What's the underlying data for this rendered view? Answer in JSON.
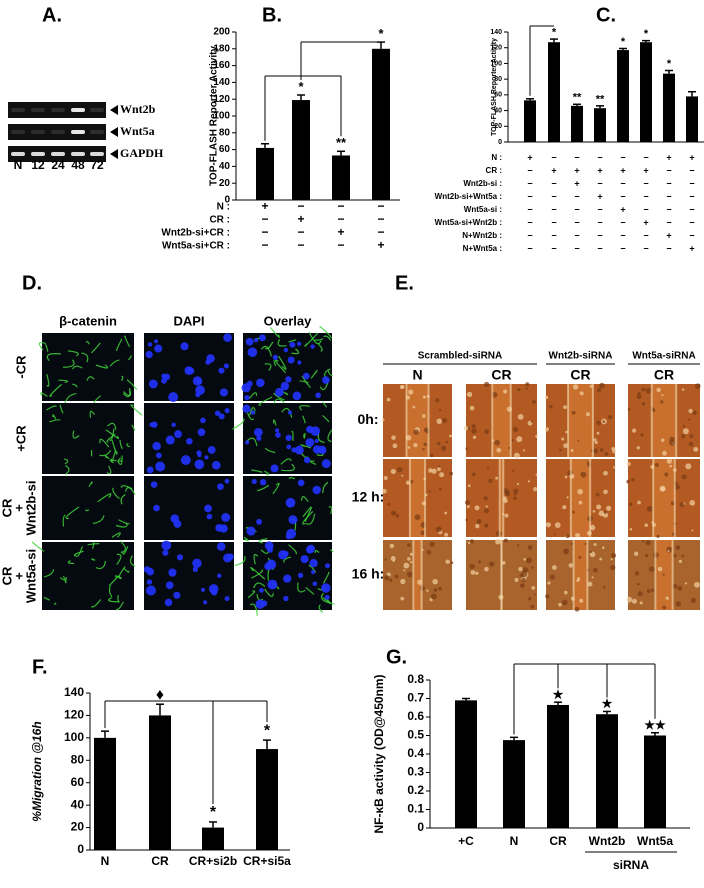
{
  "gel": {
    "panel": "A.",
    "rows": [
      "Wnt2b",
      "Wnt5a",
      "GAPDH"
    ],
    "lanes": [
      "N",
      "12",
      "24",
      "48",
      "72"
    ]
  },
  "chart_data": [
    {
      "type": "bar",
      "panel": "B.",
      "ylabel": "TOP-FLASH Reporter Activity",
      "values": [
        62,
        119,
        53,
        180
      ],
      "errors": [
        5,
        6,
        5,
        8
      ],
      "annotations": [
        null,
        "*",
        "**",
        "*"
      ],
      "color": "#000000",
      "ylim": [
        0,
        200
      ],
      "yticks": [
        0,
        20,
        40,
        60,
        80,
        100,
        120,
        140,
        160,
        180,
        200
      ],
      "conditions": [
        {
          "label": "N :",
          "signs": [
            "+",
            "−",
            "−",
            "−"
          ]
        },
        {
          "label": "CR :",
          "signs": [
            "−",
            "+",
            "−",
            "−"
          ]
        },
        {
          "label": "Wnt2b-si+CR :",
          "signs": [
            "−",
            "−",
            "+",
            "−"
          ]
        },
        {
          "label": "Wnt5a-si+CR :",
          "signs": [
            "−",
            "−",
            "−",
            "+"
          ]
        }
      ]
    },
    {
      "type": "bar",
      "panel": "C.",
      "ylabel": "TOP-FLASH Reporter Activity",
      "values": [
        53,
        127,
        46,
        43,
        117,
        127,
        87,
        58
      ],
      "errors": [
        2,
        4,
        2,
        3,
        2,
        2,
        4,
        6
      ],
      "annotations": [
        null,
        "*",
        "**",
        "**",
        "*",
        "*",
        "*",
        null
      ],
      "color": "#000000",
      "ylim": [
        0,
        140
      ],
      "yticks": [
        0,
        20,
        40,
        60,
        80,
        100,
        120,
        140
      ],
      "conditions": [
        {
          "label": "N :",
          "signs": [
            "+",
            "−",
            "−",
            "−",
            "−",
            "−",
            "+",
            "+"
          ]
        },
        {
          "label": "CR :",
          "signs": [
            "−",
            "+",
            "+",
            "+",
            "+",
            "+",
            "−",
            "−"
          ]
        },
        {
          "label": "Wnt2b-si :",
          "signs": [
            "−",
            "−",
            "+",
            "−",
            "−",
            "−",
            "−",
            "−"
          ]
        },
        {
          "label": "Wnt2b-si+Wnt5a :",
          "signs": [
            "−",
            "−",
            "−",
            "+",
            "−",
            "−",
            "−",
            "−"
          ]
        },
        {
          "label": "Wnt5a-si :",
          "signs": [
            "−",
            "−",
            "−",
            "−",
            "+",
            "−",
            "−",
            "−"
          ]
        },
        {
          "label": "Wnt5a-si+Wnt2b :",
          "signs": [
            "−",
            "−",
            "−",
            "−",
            "−",
            "+",
            "−",
            "−"
          ]
        },
        {
          "label": "N+Wnt2b :",
          "signs": [
            "−",
            "−",
            "−",
            "−",
            "−",
            "−",
            "+",
            "−"
          ]
        },
        {
          "label": "N+Wnt5a :",
          "signs": [
            "−",
            "−",
            "−",
            "−",
            "−",
            "−",
            "−",
            "+"
          ]
        }
      ]
    },
    {
      "type": "bar",
      "panel": "F.",
      "ylabel": "%Migration @16h",
      "categories": [
        "N",
        "CR",
        "CR+si2b",
        "CR+si5a"
      ],
      "values": [
        100,
        120,
        20,
        90
      ],
      "errors": [
        6,
        10,
        5,
        8
      ],
      "annotations": [
        null,
        "♦",
        "*",
        "*"
      ],
      "color": "#000000",
      "ylim": [
        0,
        140
      ],
      "yticks": [
        0,
        20,
        40,
        60,
        80,
        100,
        120,
        140
      ]
    },
    {
      "type": "bar",
      "panel": "G.",
      "ylabel": "NF-κB activity (OD@450nm)",
      "categories": [
        "+C",
        "N",
        "CR",
        "Wnt2b",
        "Wnt5a"
      ],
      "category_group": "siRNA",
      "values": [
        0.69,
        0.475,
        0.665,
        0.615,
        0.5
      ],
      "errors": [
        0.01,
        0.015,
        0.015,
        0.015,
        0.015
      ],
      "annotations": [
        null,
        null,
        "★",
        "★",
        "★★"
      ],
      "color": "#000000",
      "ylim": [
        0,
        0.8
      ],
      "yticks": [
        0,
        0.1,
        0.2,
        0.3,
        0.4,
        0.5,
        0.6,
        0.7,
        0.8
      ]
    }
  ],
  "staining": {
    "panel": "D.",
    "columns": [
      "β-catenin",
      "DAPI",
      "Overlay"
    ],
    "rows": [
      [
        "-CR"
      ],
      [
        "+CR"
      ],
      [
        "CR",
        "+",
        "Wnt2b-si"
      ],
      [
        "CR",
        "+",
        "Wnt5a-si"
      ]
    ]
  },
  "migration": {
    "panel": "E.",
    "groups": [
      "Scrambled-siRNA",
      "Wnt2b-siRNA",
      "Wnt5a-siRNA"
    ],
    "columns": [
      "N",
      "CR",
      "CR",
      "CR"
    ],
    "rows": [
      "0h:",
      "12 h:",
      "16 h:"
    ]
  }
}
